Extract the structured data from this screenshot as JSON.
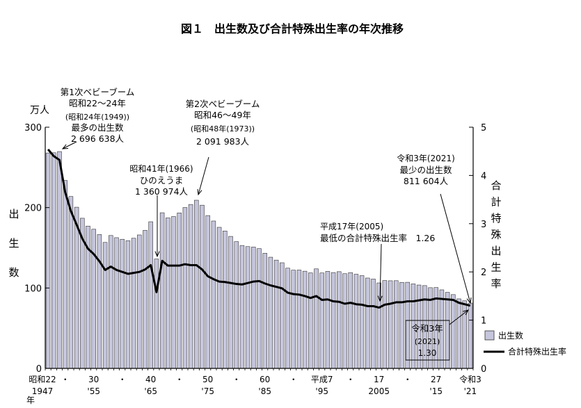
{
  "chart_data": {
    "type": "bar",
    "title": "図１　出生数及び合計特殊出生率の年次推移",
    "left_unit": "万人",
    "left_axis_label_chars": [
      "出",
      "生",
      "数"
    ],
    "right_axis_label_chars": [
      "合",
      "計",
      "特",
      "殊",
      "出",
      "生",
      "率"
    ],
    "x_unit": "年",
    "left_ylim": [
      0,
      300
    ],
    "left_ticks": [
      "0",
      "100",
      "200",
      "300"
    ],
    "right_ylim": [
      0,
      5
    ],
    "right_ticks": [
      "0",
      "1",
      "2",
      "3",
      "4",
      "5"
    ],
    "x_tick_labels": [
      {
        "year": 1947,
        "top": "昭和22",
        "bottom": "1947"
      },
      {
        "year": 1950,
        "top": "・",
        "bottom": ""
      },
      {
        "year": 1955,
        "top": "30",
        "bottom": "'55"
      },
      {
        "year": 1960,
        "top": "・",
        "bottom": ""
      },
      {
        "year": 1965,
        "top": "40",
        "bottom": "'65"
      },
      {
        "year": 1970,
        "top": "・",
        "bottom": ""
      },
      {
        "year": 1975,
        "top": "50",
        "bottom": "'75"
      },
      {
        "year": 1980,
        "top": "・",
        "bottom": ""
      },
      {
        "year": 1985,
        "top": "60",
        "bottom": "'85"
      },
      {
        "year": 1990,
        "top": "・",
        "bottom": ""
      },
      {
        "year": 1995,
        "top": "平成7",
        "bottom": "'95"
      },
      {
        "year": 2000,
        "top": "・",
        "bottom": ""
      },
      {
        "year": 2005,
        "top": "17",
        "bottom": "2005"
      },
      {
        "year": 2010,
        "top": "・",
        "bottom": ""
      },
      {
        "year": 2015,
        "top": "27",
        "bottom": "'15"
      },
      {
        "year": 2021,
        "top": "令和3",
        "bottom": "'21"
      }
    ],
    "years": [
      1947,
      1948,
      1949,
      1950,
      1951,
      1952,
      1953,
      1954,
      1955,
      1956,
      1957,
      1958,
      1959,
      1960,
      1961,
      1962,
      1963,
      1964,
      1965,
      1966,
      1967,
      1968,
      1969,
      1970,
      1971,
      1972,
      1973,
      1974,
      1975,
      1976,
      1977,
      1978,
      1979,
      1980,
      1981,
      1982,
      1983,
      1984,
      1985,
      1986,
      1987,
      1988,
      1989,
      1990,
      1991,
      1992,
      1993,
      1994,
      1995,
      1996,
      1997,
      1998,
      1999,
      2000,
      2001,
      2002,
      2003,
      2004,
      2005,
      2006,
      2007,
      2008,
      2009,
      2010,
      2011,
      2012,
      2013,
      2014,
      2015,
      2016,
      2017,
      2018,
      2019,
      2020,
      2021
    ],
    "series": [
      {
        "name": "出生数",
        "axis": "left",
        "color": "#c5c5dc",
        "values": [
          267.9,
          268.2,
          269.7,
          233.8,
          213.8,
          200.5,
          186.8,
          177.0,
          173.1,
          166.5,
          156.7,
          165.3,
          162.6,
          160.6,
          158.9,
          161.9,
          166.0,
          171.7,
          182.4,
          136.1,
          193.6,
          187.2,
          188.9,
          193.4,
          200.1,
          203.9,
          209.2,
          203.0,
          190.1,
          183.3,
          175.5,
          170.9,
          164.2,
          157.7,
          152.9,
          151.5,
          150.9,
          149.0,
          143.2,
          138.3,
          134.7,
          131.4,
          124.7,
          122.2,
          122.3,
          120.9,
          118.8,
          123.8,
          118.7,
          120.7,
          119.2,
          120.3,
          117.8,
          119.1,
          117.1,
          115.4,
          112.4,
          111.1,
          106.3,
          109.3,
          109.0,
          109.1,
          107.0,
          107.1,
          105.1,
          103.7,
          103.0,
          100.4,
          100.6,
          97.7,
          94.6,
          91.8,
          86.5,
          84.1,
          81.2
        ]
      },
      {
        "name": "合計特殊出生率",
        "axis": "right",
        "color": "#000000",
        "values": [
          4.54,
          4.4,
          4.32,
          3.65,
          3.26,
          2.98,
          2.69,
          2.48,
          2.37,
          2.22,
          2.04,
          2.11,
          2.04,
          2.0,
          1.96,
          1.98,
          2.0,
          2.05,
          2.14,
          1.58,
          2.23,
          2.13,
          2.13,
          2.13,
          2.16,
          2.14,
          2.14,
          2.05,
          1.91,
          1.85,
          1.8,
          1.79,
          1.77,
          1.75,
          1.74,
          1.77,
          1.8,
          1.81,
          1.76,
          1.72,
          1.69,
          1.66,
          1.57,
          1.54,
          1.53,
          1.5,
          1.46,
          1.5,
          1.42,
          1.43,
          1.39,
          1.38,
          1.34,
          1.36,
          1.33,
          1.32,
          1.29,
          1.29,
          1.26,
          1.32,
          1.34,
          1.37,
          1.37,
          1.39,
          1.39,
          1.41,
          1.43,
          1.42,
          1.45,
          1.44,
          1.43,
          1.42,
          1.36,
          1.33,
          1.3
        ]
      }
    ],
    "legend": {
      "placement": "bottom-right",
      "items": [
        "出生数",
        "合計特殊出生率"
      ]
    },
    "annotations": [
      {
        "id": "boom1",
        "year": 1949,
        "lines": [
          "第1次ベビーブーム",
          "昭和22～24年",
          "(昭和24年(1949))",
          "最多の出生数",
          "2 696 638人"
        ]
      },
      {
        "id": "boom2",
        "year": 1973,
        "lines": [
          "第2次ベビーブーム",
          "昭和46～49年",
          "(昭和48年(1973))",
          "2 091 983人"
        ]
      },
      {
        "id": "hinoe",
        "year": 1966,
        "lines": [
          "昭和41年(1966)",
          "ひのえうま",
          "1 360 974人"
        ]
      },
      {
        "id": "min-rate",
        "year": 2005,
        "lines": [
          "平成17年(2005)",
          "最低の合計特殊出生率　1.26"
        ]
      },
      {
        "id": "min-births",
        "year": 2021,
        "lines": [
          "令和3年(2021)",
          "最少の出生数",
          "811 604人"
        ]
      },
      {
        "id": "rate-2021",
        "year": 2021,
        "lines": [
          "令和3年",
          "(2021)",
          "1.30"
        ]
      }
    ]
  }
}
